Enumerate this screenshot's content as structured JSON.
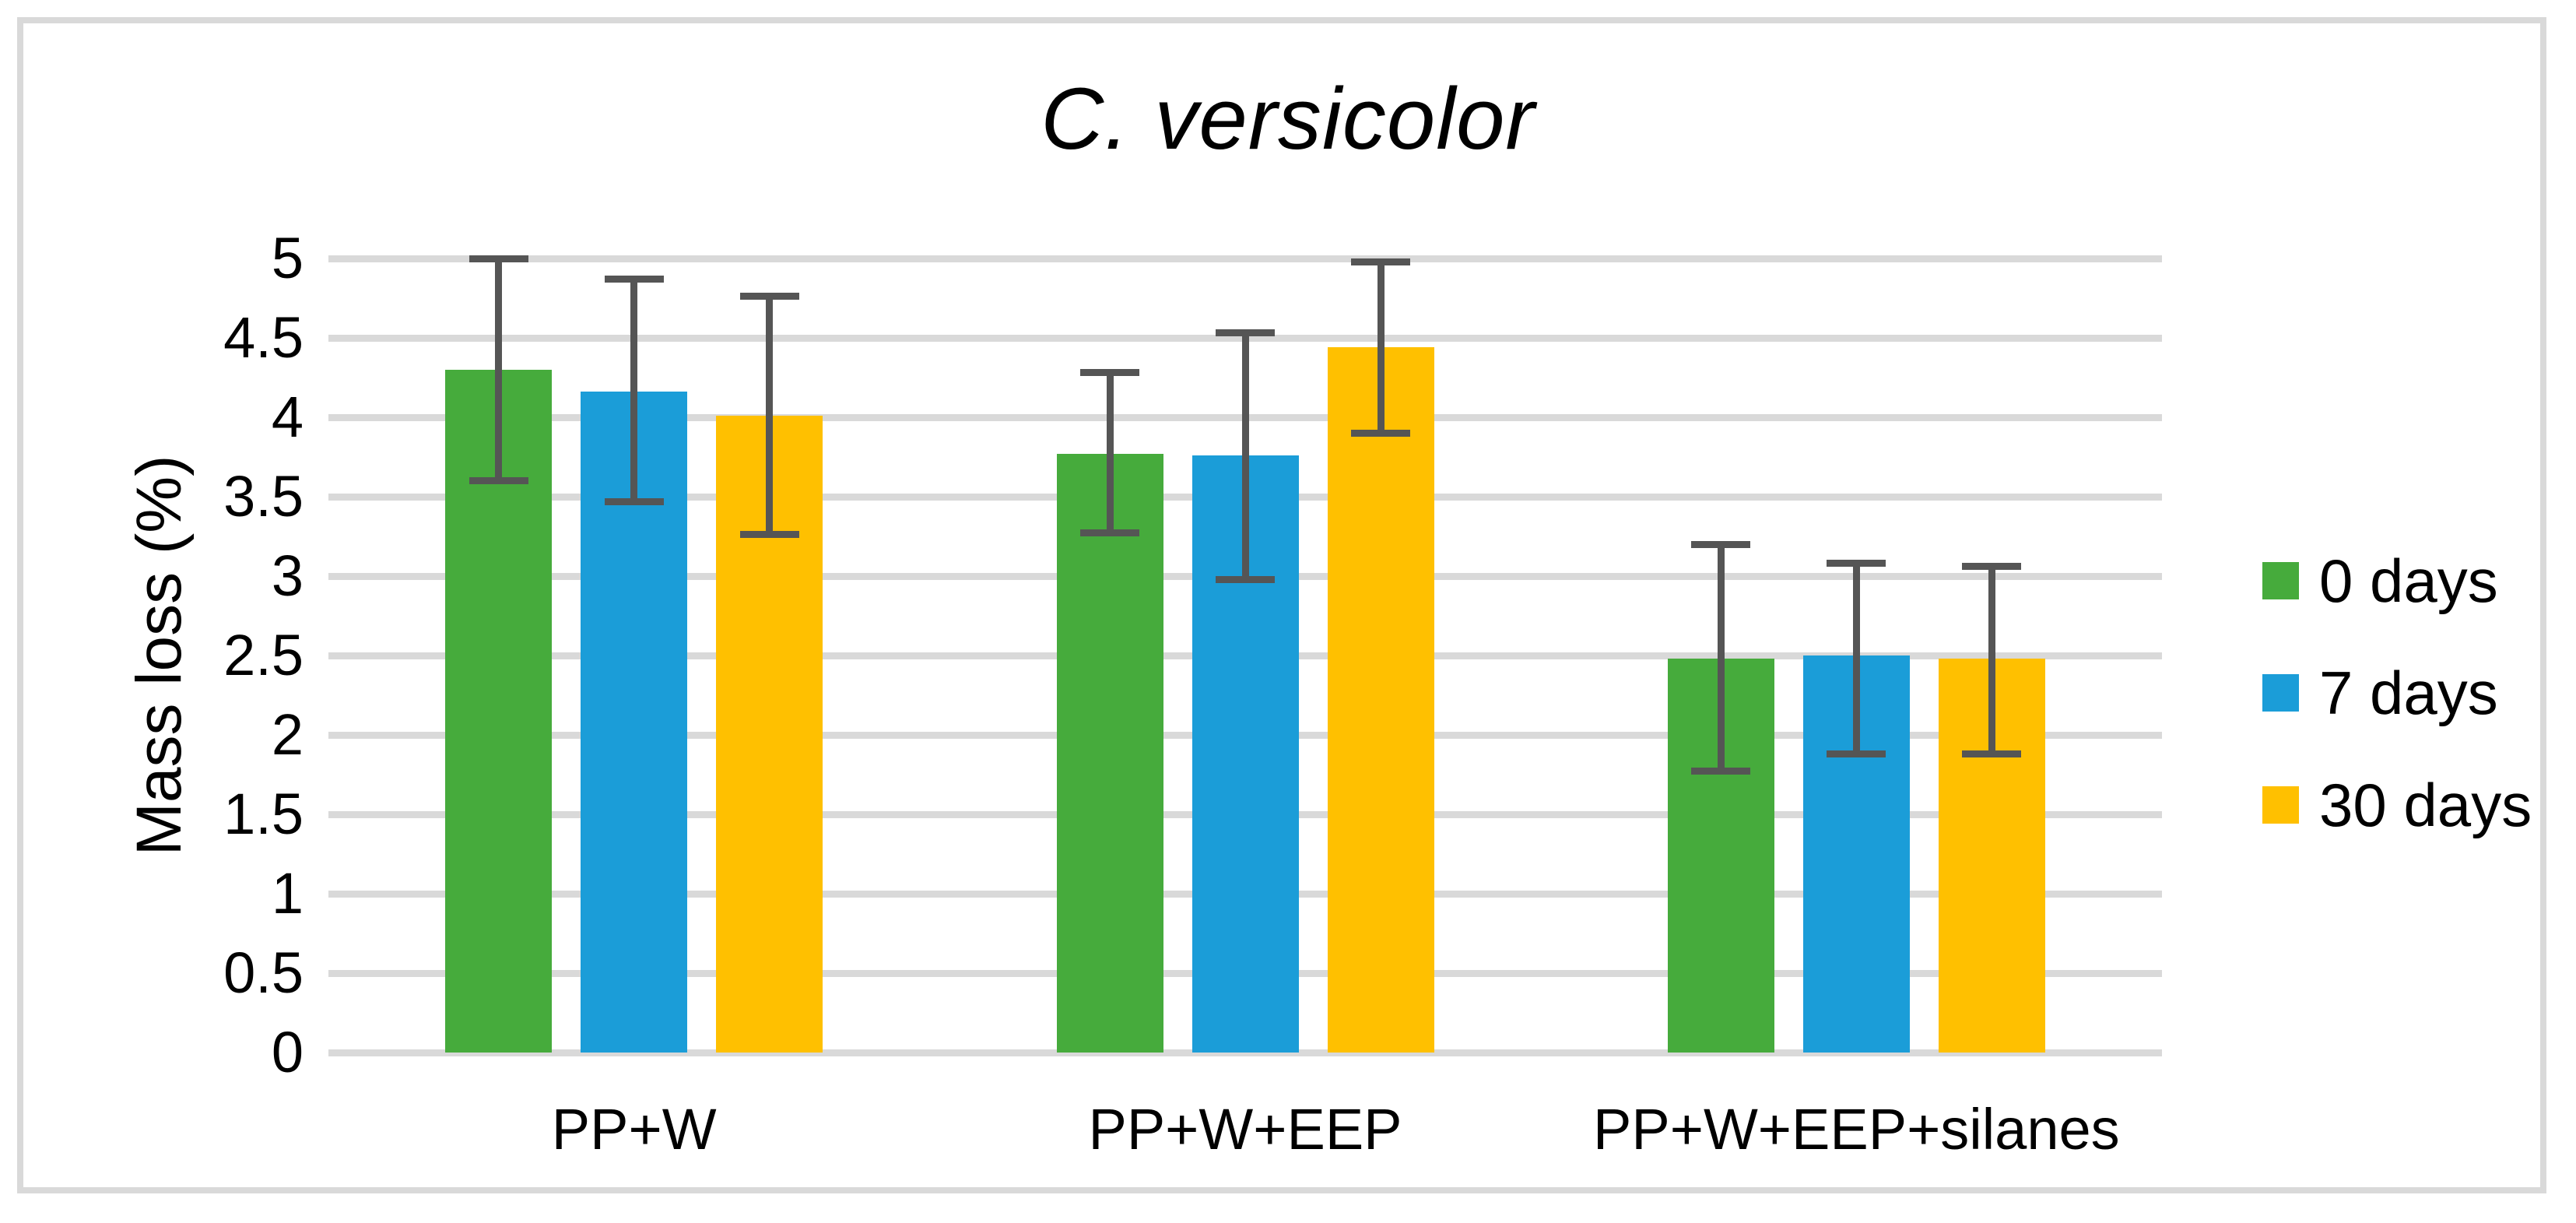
{
  "title": "C. versicolor",
  "y_axis_title": "Mass loss (%)",
  "y_tick_labels": [
    "0",
    "0.5",
    "1",
    "1.5",
    "2",
    "2.5",
    "3",
    "3.5",
    "4",
    "4.5",
    "5"
  ],
  "colors": {
    "series_green": "#46AB3C",
    "series_blue": "#1B9DD8",
    "series_yellow": "#FFC000",
    "gridline": "#D9D9D9",
    "axis_line": "#D9D9D9",
    "error_bar": "#555555",
    "border_frame": "#D9D9D9",
    "text": "#000000"
  },
  "chart_data": {
    "type": "bar",
    "title": "C. versicolor",
    "xlabel": "",
    "ylabel": "Mass loss (%)",
    "ylim": [
      0,
      5
    ],
    "ytick_step": 0.5,
    "grid": true,
    "legend_position": "right",
    "categories": [
      "PP+W",
      "PP+W+EEP",
      "PP+W+EEP+silanes"
    ],
    "series": [
      {
        "name": "0 days",
        "color": "#46AB3C",
        "values": [
          4.3,
          3.77,
          2.48
        ],
        "error_high": [
          5.0,
          4.28,
          3.2
        ],
        "error_low": [
          3.6,
          3.27,
          1.77
        ]
      },
      {
        "name": "7 days",
        "color": "#1B9DD8",
        "values": [
          4.16,
          3.76,
          2.5
        ],
        "error_high": [
          4.87,
          4.53,
          3.08
        ],
        "error_low": [
          3.47,
          2.98,
          1.88
        ]
      },
      {
        "name": "30 days",
        "color": "#FFC000",
        "values": [
          4.01,
          4.44,
          2.48
        ],
        "error_high": [
          4.76,
          4.98,
          3.06
        ],
        "error_low": [
          3.26,
          3.9,
          1.88
        ]
      }
    ]
  }
}
